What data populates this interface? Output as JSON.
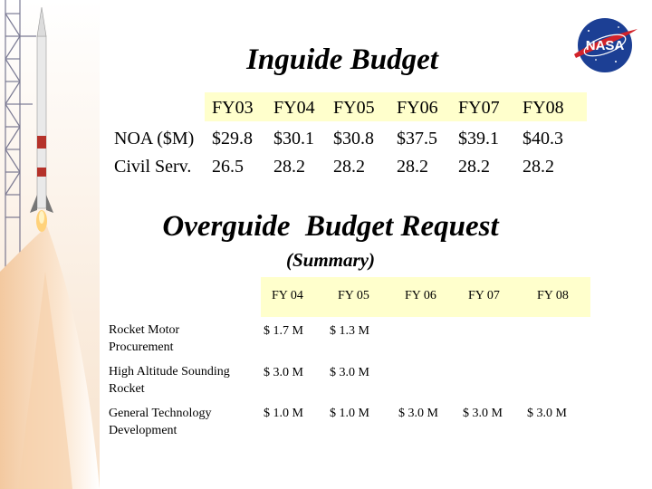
{
  "inguide": {
    "title": "Inguide Budget",
    "years": [
      "FY03",
      "FY04",
      "FY05",
      "FY06",
      "FY07",
      "FY08"
    ],
    "rows": [
      {
        "label": "NOA ($M)",
        "values": [
          "$29.8",
          "$30.1",
          "$30.8",
          "$37.5",
          "$39.1",
          "$40.3"
        ]
      },
      {
        "label": "Civil Serv.",
        "values": [
          "26.5",
          "28.2",
          "28.2",
          "28.2",
          "28.2",
          "28.2"
        ]
      }
    ]
  },
  "overguide": {
    "title": "Overguide  Budget Request",
    "subtitle": "(Summary)",
    "years": [
      "FY 04",
      "FY 05",
      "FY 06",
      "FY 07",
      "FY 08"
    ],
    "rows": [
      {
        "label": "Rocket Motor Procurement",
        "values": [
          "$ 1.7 M",
          "$ 1.3 M"
        ]
      },
      {
        "label": "High Altitude Sounding Rocket",
        "values": [
          "$ 3.0 M",
          "$ 3.0 M"
        ]
      },
      {
        "label": "General Technology Development",
        "values": [
          "$ 1.0 M",
          "$ 1.0 M",
          "$ 3.0 M",
          "$ 3.0 M",
          "$ 3.0 M"
        ]
      }
    ]
  },
  "logo": {
    "name": "nasa-logo",
    "text": "NASA",
    "colors": {
      "blue": "#1c3f94",
      "red": "#d2232a"
    }
  }
}
